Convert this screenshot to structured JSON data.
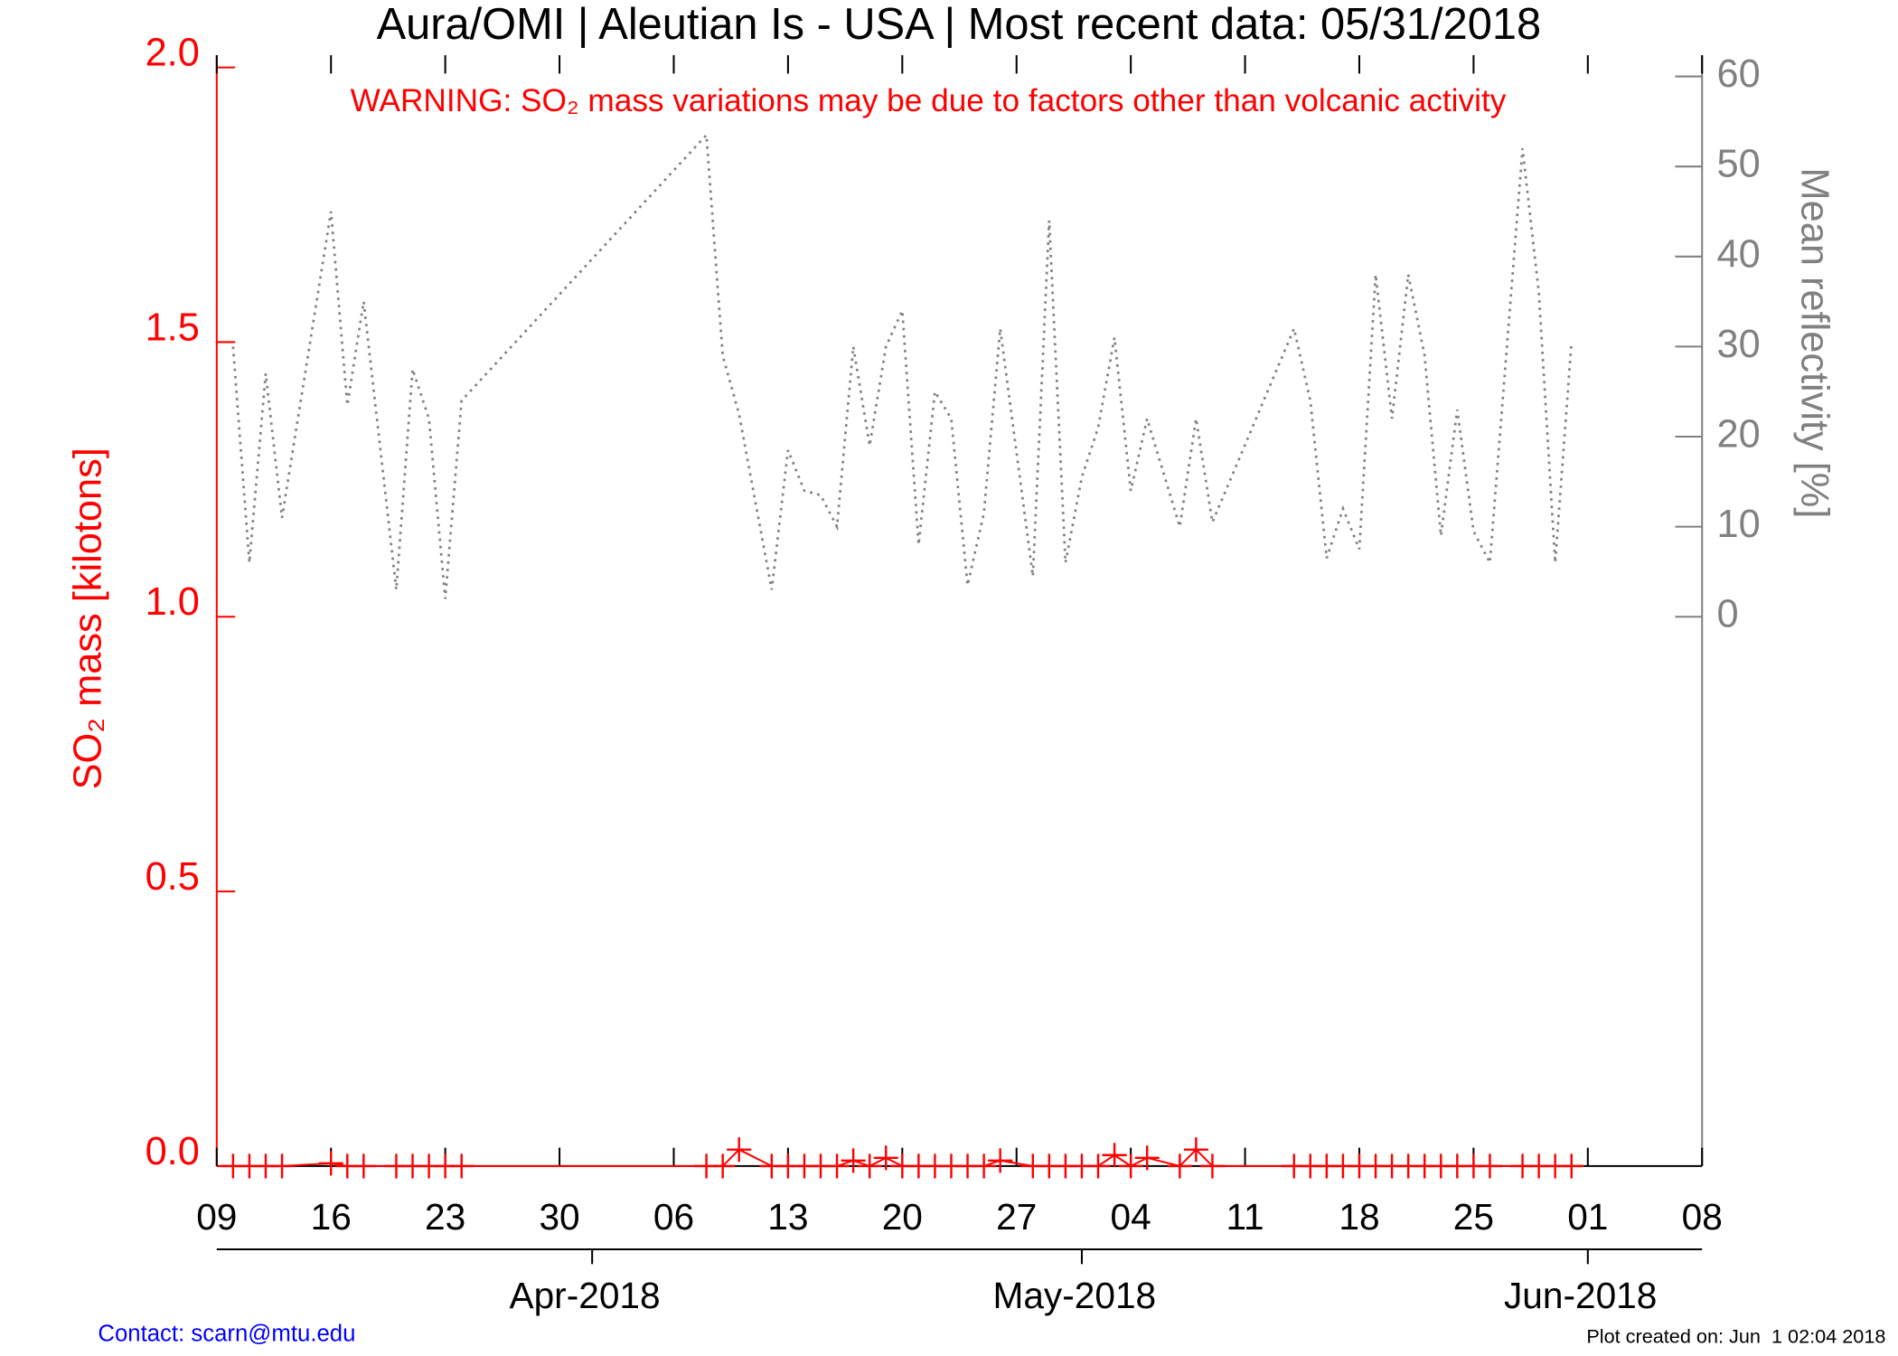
{
  "chart_data": {
    "type": "line",
    "title": "Aura/OMI | Aleutian Is - USA | Most recent data: 05/31/2018",
    "annotation": "WARNING: SO₂ mass variations may be due to factors other than volcanic activity",
    "ylabel": "SO₂ mass [kilotons]",
    "y2label": "Mean reflectivity [%]",
    "footer_left": "Contact: scarn@mtu.edu",
    "footer_right": "Plot created on: Jun  1 02:04 2018",
    "xlim": [
      "2018-03-09",
      "2018-06-08"
    ],
    "xticks": [
      {
        "value": "2018-03-09",
        "label": "09"
      },
      {
        "value": "2018-03-16",
        "label": "16"
      },
      {
        "value": "2018-03-23",
        "label": "23"
      },
      {
        "value": "2018-03-30",
        "label": "30"
      },
      {
        "value": "2018-04-06",
        "label": "06"
      },
      {
        "value": "2018-04-13",
        "label": "13"
      },
      {
        "value": "2018-04-20",
        "label": "20"
      },
      {
        "value": "2018-04-27",
        "label": "27"
      },
      {
        "value": "2018-05-04",
        "label": "04"
      },
      {
        "value": "2018-05-11",
        "label": "11"
      },
      {
        "value": "2018-05-18",
        "label": "18"
      },
      {
        "value": "2018-05-25",
        "label": "25"
      },
      {
        "value": "2018-06-01",
        "label": "01"
      },
      {
        "value": "2018-06-08",
        "label": "08"
      }
    ],
    "month_ticks": [
      {
        "value": "2018-04-01",
        "label": "Apr-2018"
      },
      {
        "value": "2018-05-01",
        "label": "May-2018"
      },
      {
        "value": "2018-06-01",
        "label": "Jun-2018"
      }
    ],
    "ylim": [
      0,
      2
    ],
    "yticks": [
      {
        "value": 0,
        "label": "0.0"
      },
      {
        "value": 0.5,
        "label": "0.5"
      },
      {
        "value": 1,
        "label": "1.0"
      },
      {
        "value": 1.5,
        "label": "1.5"
      },
      {
        "value": 2,
        "label": "2.0"
      }
    ],
    "y2lim": [
      -61,
      61
    ],
    "y2ticks": [
      0,
      10,
      20,
      30,
      40,
      50,
      60
    ],
    "x": [
      "2018-03-10",
      "2018-03-11",
      "2018-03-12",
      "2018-03-13",
      "2018-03-16",
      "2018-03-17",
      "2018-03-18",
      "2018-03-20",
      "2018-03-21",
      "2018-03-22",
      "2018-03-23",
      "2018-03-24",
      "2018-04-08",
      "2018-04-09",
      "2018-04-10",
      "2018-04-12",
      "2018-04-13",
      "2018-04-14",
      "2018-04-15",
      "2018-04-16",
      "2018-04-17",
      "2018-04-18",
      "2018-04-19",
      "2018-04-20",
      "2018-04-21",
      "2018-04-22",
      "2018-04-23",
      "2018-04-24",
      "2018-04-25",
      "2018-04-26",
      "2018-04-28",
      "2018-04-29",
      "2018-04-30",
      "2018-05-01",
      "2018-05-02",
      "2018-05-03",
      "2018-05-04",
      "2018-05-05",
      "2018-05-07",
      "2018-05-08",
      "2018-05-09",
      "2018-05-14",
      "2018-05-15",
      "2018-05-16",
      "2018-05-17",
      "2018-05-18",
      "2018-05-19",
      "2018-05-20",
      "2018-05-21",
      "2018-05-22",
      "2018-05-23",
      "2018-05-24",
      "2018-05-25",
      "2018-05-26",
      "2018-05-28",
      "2018-05-29",
      "2018-05-30",
      "2018-05-31"
    ],
    "series": [
      {
        "name": "SO₂ mass",
        "color": "#ff0000",
        "axis": "y",
        "marker": "+",
        "values": [
          0,
          0,
          0,
          0,
          0.005,
          0,
          0,
          0,
          0,
          0,
          0,
          0,
          0,
          0,
          0.03,
          0,
          0,
          0,
          0,
          0,
          0.01,
          0,
          0.015,
          0,
          0,
          0,
          0,
          0,
          0,
          0.01,
          0,
          0,
          0,
          0,
          0,
          0.02,
          0,
          0.015,
          0,
          0.03,
          0,
          0,
          0,
          0,
          0,
          0,
          0,
          0,
          0,
          0,
          0,
          0,
          0,
          0,
          0,
          0,
          0,
          0
        ]
      },
      {
        "name": "Mean reflectivity",
        "color": "#808080",
        "axis": "y2",
        "line_style": "dotted",
        "values": [
          30,
          6,
          27,
          11,
          45,
          23.5,
          35,
          3,
          27.5,
          22,
          2,
          24,
          53.5,
          29,
          22.5,
          3,
          18.5,
          14,
          13.5,
          10,
          30,
          19,
          30,
          34,
          8,
          25,
          22,
          3.5,
          11.5,
          32,
          4.5,
          44,
          6,
          15.5,
          21,
          31,
          14,
          22,
          10,
          22,
          10.5,
          32,
          24,
          6.5,
          12,
          7.5,
          38,
          22,
          38,
          29,
          9,
          23,
          9.5,
          6,
          52,
          36,
          6,
          30.5
        ]
      }
    ]
  }
}
